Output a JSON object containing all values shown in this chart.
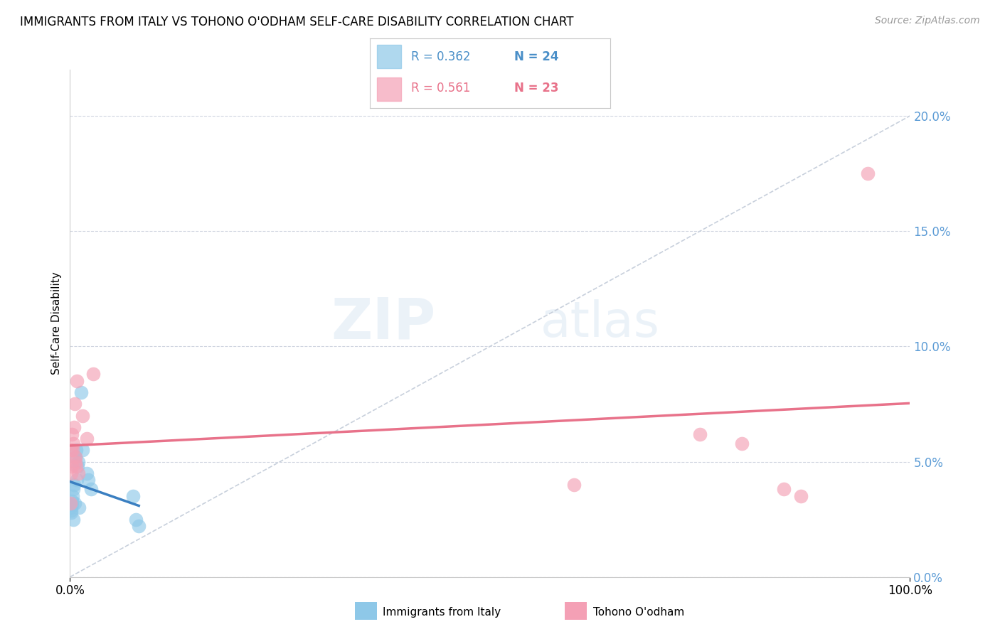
{
  "title": "IMMIGRANTS FROM ITALY VS TOHONO O'ODHAM SELF-CARE DISABILITY CORRELATION CHART",
  "source": "Source: ZipAtlas.com",
  "ylabel": "Self-Care Disability",
  "ytick_values": [
    0.0,
    5.0,
    10.0,
    15.0,
    20.0
  ],
  "xlim": [
    0,
    100
  ],
  "ylim": [
    0,
    22
  ],
  "italy_color": "#8ec8e8",
  "tohono_color": "#f4a0b5",
  "italy_line_color": "#3a7fc1",
  "tohono_line_color": "#e8728a",
  "diagonal_color": "#c8d0dc",
  "watermark_zip": "ZIP",
  "watermark_atlas": "atlas",
  "italy_x": [
    0.05,
    0.1,
    0.15,
    0.2,
    0.25,
    0.3,
    0.35,
    0.4,
    0.5,
    0.55,
    0.6,
    0.7,
    0.8,
    0.9,
    1.0,
    1.1,
    1.3,
    1.5,
    2.0,
    2.2,
    2.5,
    7.5,
    7.8,
    8.2
  ],
  "italy_y": [
    3.0,
    2.8,
    2.9,
    3.1,
    3.3,
    3.5,
    2.5,
    3.8,
    4.0,
    3.2,
    5.2,
    5.5,
    4.2,
    4.8,
    5.0,
    3.0,
    8.0,
    5.5,
    4.5,
    4.2,
    3.8,
    3.5,
    2.5,
    2.2
  ],
  "tohono_x": [
    0.05,
    0.1,
    0.15,
    0.2,
    0.25,
    0.3,
    0.4,
    0.5,
    0.55,
    0.6,
    0.65,
    0.7,
    0.8,
    1.0,
    1.5,
    2.0,
    2.8,
    60.0,
    75.0,
    80.0,
    85.0,
    87.0,
    95.0
  ],
  "tohono_y": [
    3.2,
    5.5,
    4.5,
    4.8,
    6.2,
    5.5,
    5.8,
    6.5,
    7.5,
    5.2,
    5.0,
    4.8,
    8.5,
    4.5,
    7.0,
    6.0,
    8.8,
    4.0,
    6.2,
    5.8,
    3.8,
    3.5,
    17.5
  ]
}
